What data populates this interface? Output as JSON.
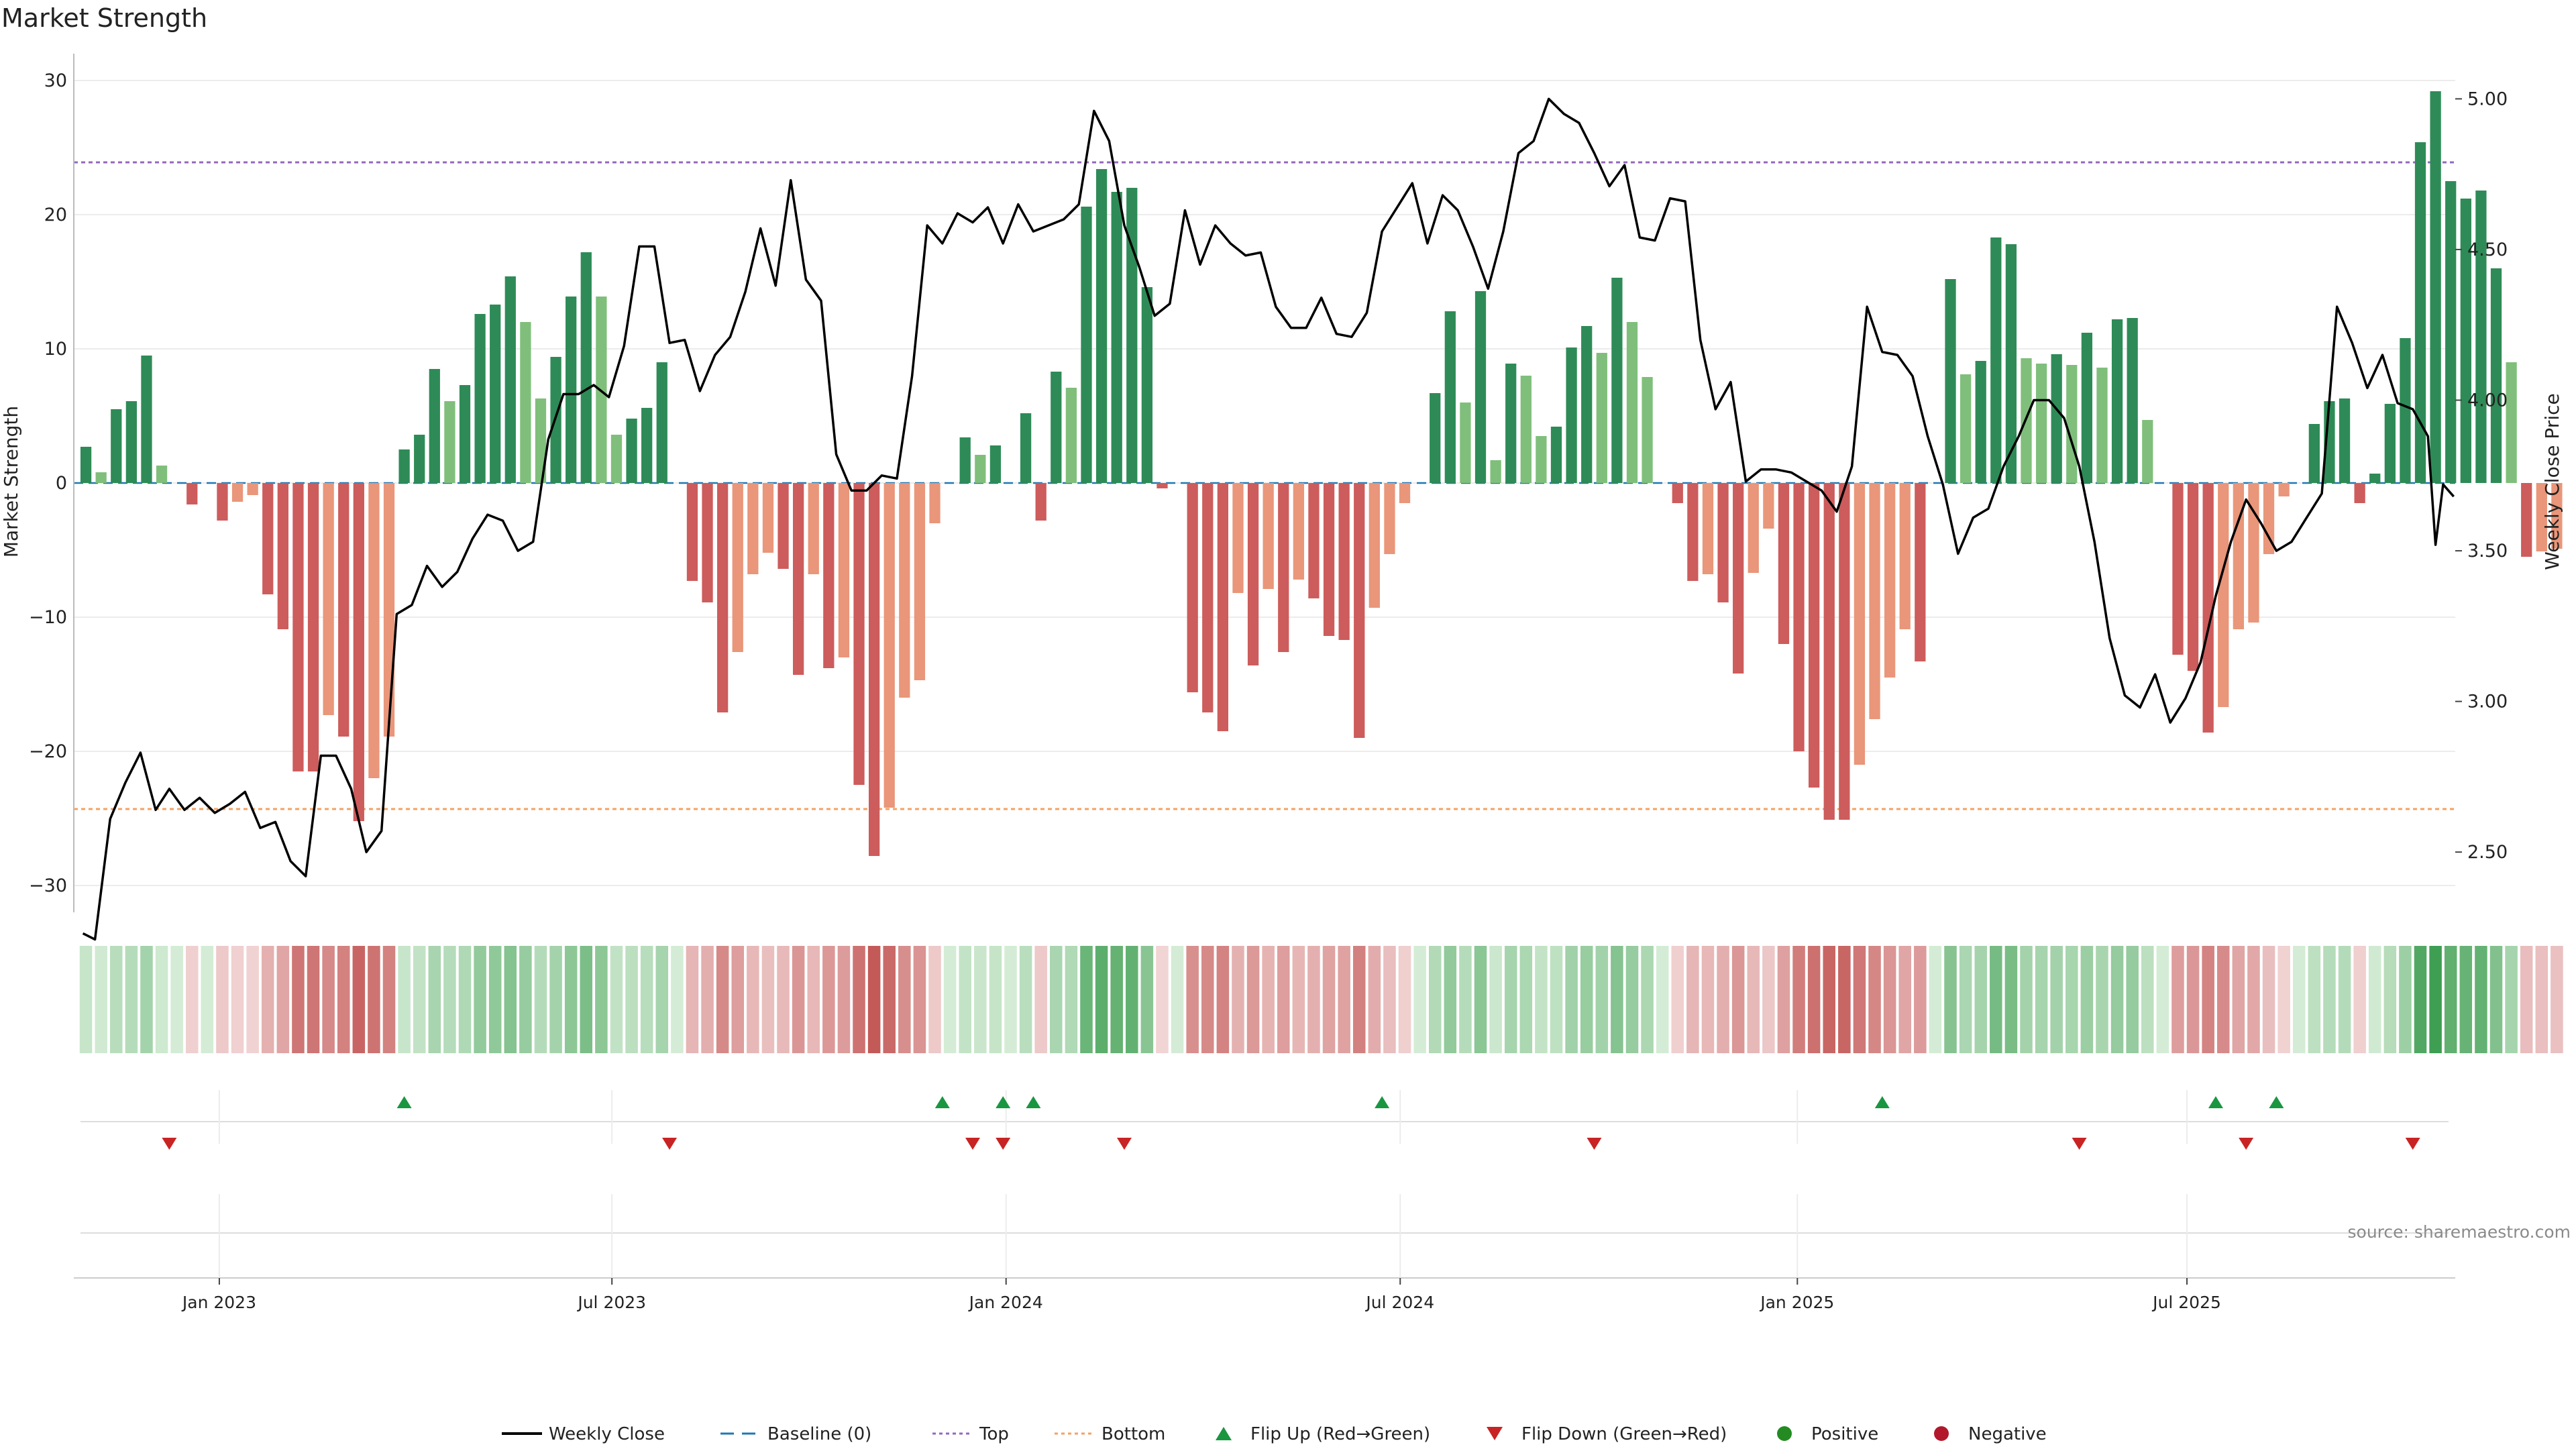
{
  "chart_data": {
    "type": "bar",
    "title": "Market Strength",
    "ylabel_left": "Market Strength",
    "ylabel_right": "Weekly Close Price",
    "ylim_left": [
      -32,
      32
    ],
    "ylim_right": [
      2.3,
      5.15
    ],
    "yticks_left": [
      "30",
      "20",
      "10",
      "0",
      "−10",
      "−20",
      "−30"
    ],
    "yticks_left_values": [
      30,
      20,
      10,
      0,
      -10,
      -20,
      -30
    ],
    "yticks_right": [
      "5.00",
      "4.50",
      "4.00",
      "3.50",
      "3.00",
      "2.50"
    ],
    "yticks_right_values": [
      5.0,
      4.5,
      4.0,
      3.5,
      3.0,
      2.5
    ],
    "x_range_weeks": [
      -0.8,
      156.3
    ],
    "xticks": [
      {
        "label": "Jan 2023",
        "week": 8.8
      },
      {
        "label": "Jul 2023",
        "week": 34.7
      },
      {
        "label": "Jan 2024",
        "week": 60.7
      },
      {
        "label": "Jul 2024",
        "week": 86.7
      },
      {
        "label": "Jan 2025",
        "week": 112.9
      },
      {
        "label": "Jul 2025",
        "week": 138.6
      }
    ],
    "top_level": 23.9,
    "bottom_level": -24.3,
    "strength": [
      2.7,
      0.8,
      5.5,
      6.1,
      9.5,
      1.3,
      0.0,
      -1.6,
      0.0,
      -2.8,
      -1.4,
      -0.9,
      -8.3,
      -10.9,
      -21.5,
      -21.5,
      -17.3,
      -18.9,
      -25.2,
      -22.0,
      -18.9,
      2.5,
      3.6,
      8.5,
      6.1,
      7.3,
      12.6,
      13.3,
      15.4,
      12.0,
      6.3,
      9.4,
      13.9,
      17.2,
      13.9,
      3.6,
      4.8,
      5.6,
      9.0,
      0.0,
      -7.3,
      -8.9,
      -17.1,
      -12.6,
      -6.8,
      -5.2,
      -6.4,
      -14.3,
      -6.8,
      -13.8,
      -13.0,
      -22.5,
      -27.8,
      -24.2,
      -16.0,
      -14.7,
      -3.0,
      0.0,
      3.4,
      2.1,
      2.8,
      0.0,
      5.2,
      -2.8,
      8.3,
      7.1,
      20.6,
      23.4,
      21.7,
      22.0,
      14.6,
      -0.4,
      0.0,
      -15.6,
      -17.1,
      -18.5,
      -8.2,
      -13.6,
      -7.9,
      -12.6,
      -7.2,
      -8.6,
      -11.4,
      -11.7,
      -19.0,
      -9.3,
      -5.3,
      -1.5,
      0.0,
      6.7,
      12.8,
      6.0,
      14.3,
      1.7,
      8.9,
      8.0,
      3.5,
      4.2,
      10.1,
      11.7,
      9.7,
      15.3,
      12.0,
      7.9,
      0.0,
      -1.5,
      -7.3,
      -6.8,
      -8.9,
      -14.2,
      -6.7,
      -3.4,
      -12.0,
      -20.0,
      -22.7,
      -25.1,
      -25.1,
      -21.0,
      -17.6,
      -14.5,
      -10.9,
      -13.3,
      0.0,
      15.2,
      8.1,
      9.1,
      18.3,
      17.8,
      9.3,
      8.9,
      9.6,
      8.8,
      11.2,
      8.6,
      12.2,
      12.3,
      4.7,
      0.0,
      -12.8,
      -14.0,
      -18.6,
      -16.7,
      -10.9,
      -10.4,
      -5.3,
      -1.0,
      0.0,
      4.4,
      6.1,
      6.3,
      -1.5,
      0.7,
      5.9,
      10.8,
      25.4,
      29.2,
      22.5,
      21.2,
      21.8,
      16.0,
      9.0,
      -5.5,
      -5.1,
      -4.9
    ],
    "colors_positive": {
      "strong": "#2e8b57",
      "weak": "#7fbf7b"
    },
    "colors_negative": {
      "strong": "#cd5c5c",
      "weak": "#e9967a"
    },
    "weekly_close": [
      [
        -0.2,
        2.23
      ],
      [
        0.6,
        2.21
      ],
      [
        1.6,
        2.61
      ],
      [
        2.6,
        2.73
      ],
      [
        3.6,
        2.83
      ],
      [
        4.6,
        2.64
      ],
      [
        5.5,
        2.71
      ],
      [
        6.5,
        2.64
      ],
      [
        7.5,
        2.68
      ],
      [
        8.5,
        2.63
      ],
      [
        9.5,
        2.66
      ],
      [
        10.5,
        2.7
      ],
      [
        11.5,
        2.58
      ],
      [
        12.5,
        2.6
      ],
      [
        13.5,
        2.47
      ],
      [
        14.5,
        2.42
      ],
      [
        15.5,
        2.82
      ],
      [
        16.5,
        2.82
      ],
      [
        17.5,
        2.71
      ],
      [
        18.5,
        2.5
      ],
      [
        19.5,
        2.57
      ],
      [
        20.5,
        3.29
      ],
      [
        21.5,
        3.32
      ],
      [
        22.5,
        3.45
      ],
      [
        23.5,
        3.38
      ],
      [
        24.5,
        3.43
      ],
      [
        25.5,
        3.54
      ],
      [
        26.5,
        3.62
      ],
      [
        27.5,
        3.6
      ],
      [
        28.5,
        3.5
      ],
      [
        29.5,
        3.53
      ],
      [
        30.5,
        3.87
      ],
      [
        31.5,
        4.02
      ],
      [
        32.5,
        4.02
      ],
      [
        33.5,
        4.05
      ],
      [
        34.5,
        4.01
      ],
      [
        35.5,
        4.18
      ],
      [
        36.5,
        4.51
      ],
      [
        37.5,
        4.51
      ],
      [
        38.5,
        4.19
      ],
      [
        39.5,
        4.2
      ],
      [
        40.5,
        4.03
      ],
      [
        41.5,
        4.15
      ],
      [
        42.5,
        4.21
      ],
      [
        43.5,
        4.36
      ],
      [
        44.5,
        4.57
      ],
      [
        45.5,
        4.38
      ],
      [
        46.5,
        4.73
      ],
      [
        47.5,
        4.4
      ],
      [
        48.5,
        4.33
      ],
      [
        49.5,
        3.82
      ],
      [
        50.5,
        3.7
      ],
      [
        51.5,
        3.7
      ],
      [
        52.5,
        3.75
      ],
      [
        53.5,
        3.74
      ],
      [
        54.5,
        4.08
      ],
      [
        55.5,
        4.58
      ],
      [
        56.5,
        4.52
      ],
      [
        57.5,
        4.62
      ],
      [
        58.5,
        4.59
      ],
      [
        59.5,
        4.64
      ],
      [
        60.5,
        4.52
      ],
      [
        61.5,
        4.65
      ],
      [
        62.5,
        4.56
      ],
      [
        63.5,
        4.58
      ],
      [
        64.5,
        4.6
      ],
      [
        65.5,
        4.65
      ],
      [
        66.5,
        4.96
      ],
      [
        67.5,
        4.86
      ],
      [
        68.5,
        4.58
      ],
      [
        69.5,
        4.44
      ],
      [
        70.5,
        4.28
      ],
      [
        71.5,
        4.32
      ],
      [
        72.5,
        4.63
      ],
      [
        73.5,
        4.45
      ],
      [
        74.5,
        4.58
      ],
      [
        75.5,
        4.52
      ],
      [
        76.5,
        4.48
      ],
      [
        77.5,
        4.49
      ],
      [
        78.5,
        4.31
      ],
      [
        79.5,
        4.24
      ],
      [
        80.5,
        4.24
      ],
      [
        81.5,
        4.34
      ],
      [
        82.5,
        4.22
      ],
      [
        83.5,
        4.21
      ],
      [
        84.5,
        4.29
      ],
      [
        85.5,
        4.56
      ],
      [
        86.5,
        4.64
      ],
      [
        87.5,
        4.72
      ],
      [
        88.5,
        4.52
      ],
      [
        89.5,
        4.68
      ],
      [
        90.5,
        4.63
      ],
      [
        91.5,
        4.51
      ],
      [
        92.5,
        4.37
      ],
      [
        93.5,
        4.56
      ],
      [
        94.5,
        4.82
      ],
      [
        95.5,
        4.86
      ],
      [
        96.5,
        5.0
      ],
      [
        97.5,
        4.95
      ],
      [
        98.5,
        4.92
      ],
      [
        99.5,
        4.82
      ],
      [
        100.5,
        4.71
      ],
      [
        101.5,
        4.78
      ],
      [
        102.5,
        4.54
      ],
      [
        103.5,
        4.53
      ],
      [
        104.5,
        4.67
      ],
      [
        105.5,
        4.66
      ],
      [
        106.5,
        4.2
      ],
      [
        107.5,
        3.97
      ],
      [
        108.5,
        4.06
      ],
      [
        109.5,
        3.73
      ],
      [
        110.5,
        3.77
      ],
      [
        111.5,
        3.77
      ],
      [
        112.5,
        3.76
      ],
      [
        113.5,
        3.73
      ],
      [
        114.5,
        3.7
      ],
      [
        115.5,
        3.63
      ],
      [
        116.5,
        3.78
      ],
      [
        117.5,
        4.31
      ],
      [
        118.5,
        4.16
      ],
      [
        119.5,
        4.15
      ],
      [
        120.5,
        4.08
      ],
      [
        121.5,
        3.88
      ],
      [
        122.5,
        3.72
      ],
      [
        123.5,
        3.49
      ],
      [
        124.5,
        3.61
      ],
      [
        125.5,
        3.64
      ],
      [
        126.5,
        3.78
      ],
      [
        127.5,
        3.88
      ],
      [
        128.5,
        4.0
      ],
      [
        129.5,
        4.0
      ],
      [
        130.5,
        3.94
      ],
      [
        131.5,
        3.78
      ],
      [
        132.5,
        3.53
      ],
      [
        133.5,
        3.21
      ],
      [
        134.5,
        3.02
      ],
      [
        135.5,
        2.98
      ],
      [
        136.5,
        3.09
      ],
      [
        137.5,
        2.93
      ],
      [
        138.5,
        3.01
      ],
      [
        139.5,
        3.13
      ],
      [
        140.5,
        3.35
      ],
      [
        141.5,
        3.53
      ],
      [
        142.5,
        3.67
      ],
      [
        143.5,
        3.59
      ],
      [
        144.5,
        3.5
      ],
      [
        145.5,
        3.53
      ],
      [
        146.5,
        3.61
      ],
      [
        147.5,
        3.69
      ],
      [
        148.5,
        4.31
      ],
      [
        149.5,
        4.19
      ],
      [
        150.5,
        4.04
      ],
      [
        151.5,
        4.15
      ],
      [
        152.5,
        3.99
      ],
      [
        153.5,
        3.97
      ],
      [
        154.5,
        3.88
      ],
      [
        155.0,
        3.52
      ],
      [
        155.5,
        3.72
      ],
      [
        156.2,
        3.68
      ]
    ],
    "flip_up_weeks": [
      21.0,
      56.5,
      60.5,
      62.5,
      85.5,
      118.5,
      140.5,
      144.5
    ],
    "flip_down_weeks": [
      5.5,
      38.5,
      58.5,
      60.5,
      68.5,
      99.5,
      131.5,
      142.5,
      153.5
    ],
    "colors": {
      "flip_up": "#1a9641",
      "flip_down": "#c82423",
      "positive": "#238b22",
      "negative": "#b2182b",
      "top": "#9467bd",
      "bottom": "#f4a261",
      "baseline": "#1f77b4",
      "line": "#000000"
    },
    "legend": [
      {
        "label": "Weekly Close",
        "symbol": "line"
      },
      {
        "label": "Baseline (0)",
        "symbol": "dash"
      },
      {
        "label": "Top",
        "symbol": "dot-purple"
      },
      {
        "label": "Bottom",
        "symbol": "dot-orange"
      },
      {
        "label": "Flip Up (Red→Green)",
        "symbol": "triangle-up"
      },
      {
        "label": "Flip Down (Green→Red)",
        "symbol": "triangle-down"
      },
      {
        "label": "Positive",
        "symbol": "circle-green"
      },
      {
        "label": "Negative",
        "symbol": "circle-red"
      }
    ],
    "legend_position": "bottom-center",
    "source": "source: sharemaestro.com"
  }
}
